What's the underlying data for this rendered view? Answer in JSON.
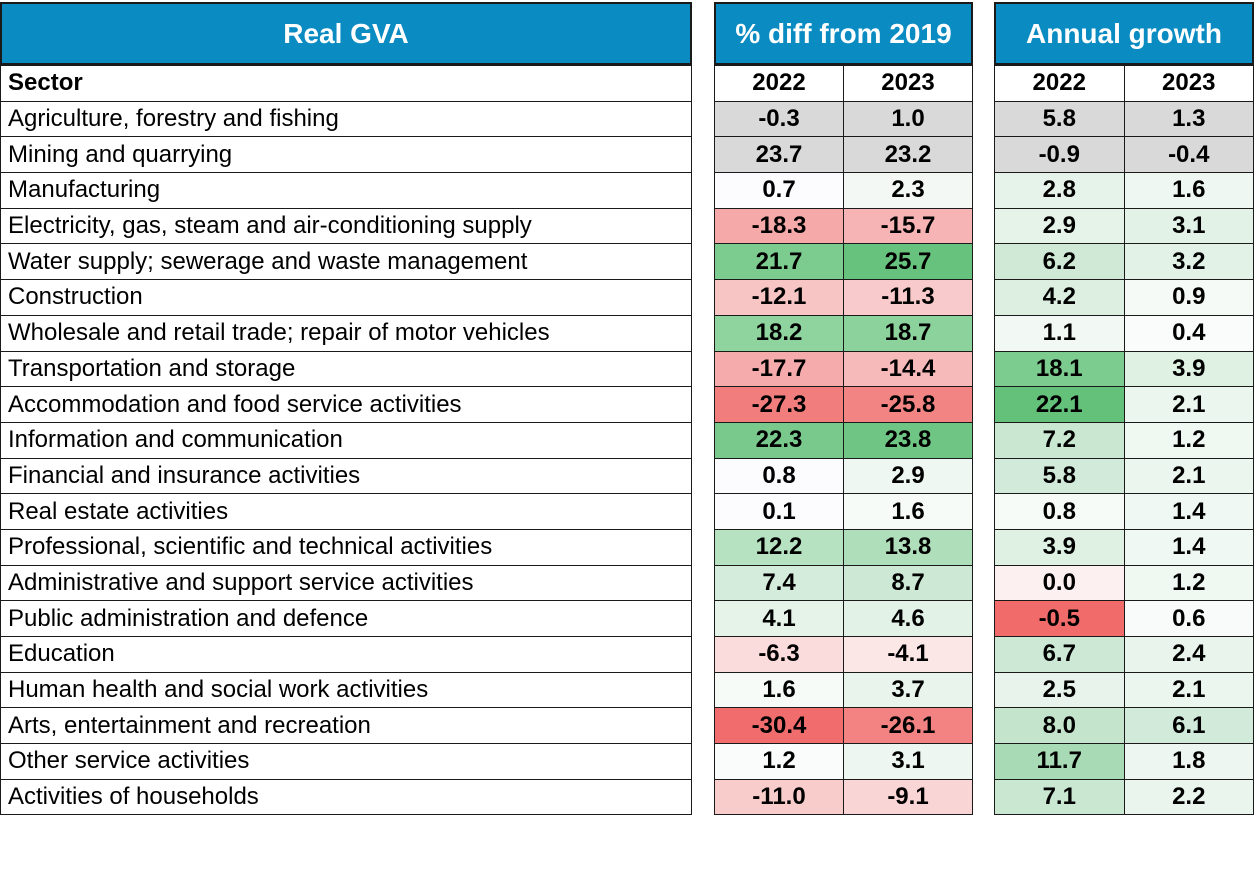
{
  "chart_data": {
    "type": "table",
    "panels": {
      "sector_header": "Real GVA",
      "diff_header": "% diff from 2019",
      "growth_header": "Annual growth"
    },
    "row_header": "Sector",
    "years": [
      "2022",
      "2023"
    ],
    "rows": [
      {
        "sector": "Agriculture, forestry and fishing",
        "diff": [
          "-0.3",
          "1.0"
        ],
        "growth": [
          "5.8",
          "1.3"
        ],
        "diff_color": [
          "#d9d9d9",
          "#d9d9d9"
        ],
        "growth_color": [
          "#d9d9d9",
          "#d9d9d9"
        ]
      },
      {
        "sector": "Mining and quarrying",
        "diff": [
          "23.7",
          "23.2"
        ],
        "growth": [
          "-0.9",
          "-0.4"
        ],
        "diff_color": [
          "#d9d9d9",
          "#d9d9d9"
        ],
        "growth_color": [
          "#d9d9d9",
          "#d9d9d9"
        ]
      },
      {
        "sector": "Manufacturing",
        "diff": [
          "0.7",
          "2.3"
        ],
        "growth": [
          "2.8",
          "1.6"
        ],
        "diff_color": [
          "#fcfcff",
          "#f3f8f5"
        ],
        "growth_color": [
          "#e6f3ea",
          "#eef7f1"
        ]
      },
      {
        "sector": "Electricity, gas, steam and air-conditioning supply",
        "diff": [
          "-18.3",
          "-15.7"
        ],
        "growth": [
          "2.9",
          "3.1"
        ],
        "diff_color": [
          "#f5a9a9",
          "#f6b4b4"
        ],
        "growth_color": [
          "#e5f3e9",
          "#e3f2e7"
        ]
      },
      {
        "sector": "Water supply; sewerage and waste management",
        "diff": [
          "21.7",
          "25.7"
        ],
        "growth": [
          "6.2",
          "3.2"
        ],
        "diff_color": [
          "#7ccb8f",
          "#66c27d"
        ],
        "growth_color": [
          "#cfe9d6",
          "#e2f2e6"
        ]
      },
      {
        "sector": "Construction",
        "diff": [
          "-12.1",
          "-11.3"
        ],
        "growth": [
          "4.2",
          "0.9"
        ],
        "diff_color": [
          "#f8c5c5",
          "#f9cacb"
        ],
        "growth_color": [
          "#dcefe1",
          "#f5faf6"
        ]
      },
      {
        "sector": "Wholesale and retail trade; repair of motor vehicles",
        "diff": [
          "18.2",
          "18.7"
        ],
        "growth": [
          "1.1",
          "0.4"
        ],
        "diff_color": [
          "#8fd39f",
          "#8cd29c"
        ],
        "growth_color": [
          "#f2f9f4",
          "#fafcfb"
        ]
      },
      {
        "sector": "Transportation and storage",
        "diff": [
          "-17.7",
          "-14.4"
        ],
        "growth": [
          "18.1",
          "3.9"
        ],
        "diff_color": [
          "#f5abab",
          "#f7baba"
        ],
        "growth_color": [
          "#7ccb8f",
          "#def1e3"
        ]
      },
      {
        "sector": "Accommodation and food service activities",
        "diff": [
          "-27.3",
          "-25.8"
        ],
        "growth": [
          "22.1",
          "2.1"
        ],
        "diff_color": [
          "#f27d7d",
          "#f38484"
        ],
        "growth_color": [
          "#63c17a",
          "#ebf6ee"
        ]
      },
      {
        "sector": "Information and communication",
        "diff": [
          "22.3",
          "23.8"
        ],
        "growth": [
          "7.2",
          "1.2"
        ],
        "diff_color": [
          "#79c98c",
          "#6fc584"
        ],
        "growth_color": [
          "#c9e7d1",
          "#f0f8f2"
        ]
      },
      {
        "sector": "Financial and insurance activities",
        "diff": [
          "0.8",
          "2.9"
        ],
        "growth": [
          "5.8",
          "2.1"
        ],
        "diff_color": [
          "#fcfcff",
          "#eef7f1"
        ],
        "growth_color": [
          "#d2eada",
          "#ebf6ee"
        ]
      },
      {
        "sector": "Real estate activities",
        "diff": [
          "0.1",
          "1.6"
        ],
        "growth": [
          "0.8",
          "1.4"
        ],
        "diff_color": [
          "#fcfcff",
          "#f6fbf8"
        ],
        "growth_color": [
          "#f6fbf8",
          "#eff8f2"
        ]
      },
      {
        "sector": "Professional, scientific and technical activities",
        "diff": [
          "12.2",
          "13.8"
        ],
        "growth": [
          "3.9",
          "1.4"
        ],
        "diff_color": [
          "#b7e2c1",
          "#afdeba"
        ],
        "growth_color": [
          "#def1e3",
          "#eff8f2"
        ]
      },
      {
        "sector": "Administrative and support service activities",
        "diff": [
          "7.4",
          "8.7"
        ],
        "growth": [
          "0.0",
          "1.2"
        ],
        "diff_color": [
          "#d4ecdb",
          "#cde9d5"
        ],
        "growth_color": [
          "#fdf0f0",
          "#f0f8f2"
        ]
      },
      {
        "sector": "Public administration and defence",
        "diff": [
          "4.1",
          "4.6"
        ],
        "growth": [
          "-0.5",
          "0.6"
        ],
        "diff_color": [
          "#e5f3e9",
          "#e2f2e6"
        ],
        "growth_color": [
          "#f26b6b",
          "#f8fbf9"
        ]
      },
      {
        "sector": "Education",
        "diff": [
          "-6.3",
          "-4.1"
        ],
        "growth": [
          "6.7",
          "2.4"
        ],
        "diff_color": [
          "#fbdcdc",
          "#fce7e7"
        ],
        "growth_color": [
          "#cde8d4",
          "#e9f5ec"
        ]
      },
      {
        "sector": "Human health and social work activities",
        "diff": [
          "1.6",
          "3.7"
        ],
        "growth": [
          "2.5",
          "2.1"
        ],
        "diff_color": [
          "#f7fbf8",
          "#e9f5ec"
        ],
        "growth_color": [
          "#e8f4eb",
          "#ebf6ee"
        ]
      },
      {
        "sector": "Arts, entertainment and recreation",
        "diff": [
          "-30.4",
          "-26.1"
        ],
        "growth": [
          "8.0",
          "6.1"
        ],
        "diff_color": [
          "#f16d6d",
          "#f38383"
        ],
        "growth_color": [
          "#c4e5cc",
          "#d1eada"
        ]
      },
      {
        "sector": "Other service activities",
        "diff": [
          "1.2",
          "3.1"
        ],
        "growth": [
          "11.7",
          "1.8"
        ],
        "diff_color": [
          "#f9fcfa",
          "#edf6f0"
        ],
        "growth_color": [
          "#a8dbb5",
          "#edf6f0"
        ]
      },
      {
        "sector": "Activities of households",
        "diff": [
          "-11.0",
          "-9.1"
        ],
        "growth": [
          "7.1",
          "2.2"
        ],
        "diff_color": [
          "#f9cccc",
          "#fad5d5"
        ],
        "growth_color": [
          "#c9e7d1",
          "#eaf5ed"
        ]
      }
    ]
  }
}
